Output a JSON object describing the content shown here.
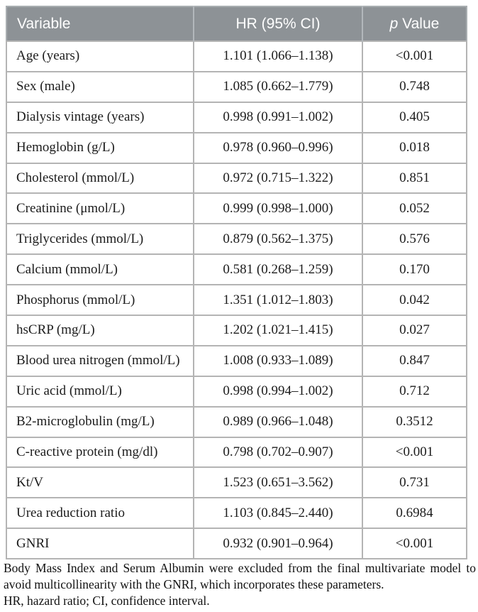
{
  "colors": {
    "header_bg": "#8d9296",
    "header_text": "#ffffff",
    "border": "#b4b4b4",
    "body_text": "#1c1c1c"
  },
  "table": {
    "header": {
      "variable": "Variable",
      "hr_ci": "HR (95% CI)",
      "p_italic": "p",
      "p_rest": " Value"
    },
    "rows": [
      {
        "variable": "Age (years)",
        "hr_ci": "1.101 (1.066–1.138)",
        "p": "<0.001"
      },
      {
        "variable": "Sex (male)",
        "hr_ci": "1.085 (0.662–1.779)",
        "p": "0.748"
      },
      {
        "variable": "Dialysis vintage (years)",
        "hr_ci": "0.998 (0.991–1.002)",
        "p": "0.405"
      },
      {
        "variable": "Hemoglobin (g/L)",
        "hr_ci": "0.978 (0.960–0.996)",
        "p": "0.018"
      },
      {
        "variable": "Cholesterol (mmol/L)",
        "hr_ci": "0.972 (0.715–1.322)",
        "p": "0.851"
      },
      {
        "variable": "Creatinine (μmol/L)",
        "hr_ci": "0.999 (0.998–1.000)",
        "p": "0.052"
      },
      {
        "variable": "Triglycerides (mmol/L)",
        "hr_ci": "0.879 (0.562–1.375)",
        "p": "0.576"
      },
      {
        "variable": "Calcium (mmol/L)",
        "hr_ci": "0.581 (0.268–1.259)",
        "p": "0.170"
      },
      {
        "variable": "Phosphorus (mmol/L)",
        "hr_ci": "1.351 (1.012–1.803)",
        "p": "0.042"
      },
      {
        "variable": "hsCRP (mg/L)",
        "hr_ci": "1.202 (1.021–1.415)",
        "p": "0.027"
      },
      {
        "variable": "Blood urea nitrogen (mmol/L)",
        "hr_ci": "1.008 (0.933–1.089)",
        "p": "0.847"
      },
      {
        "variable": "Uric acid (mmol/L)",
        "hr_ci": "0.998 (0.994–1.002)",
        "p": "0.712"
      },
      {
        "variable": "B2-microglobulin (mg/L)",
        "hr_ci": "0.989 (0.966–1.048)",
        "p": "0.3512"
      },
      {
        "variable": "C-reactive protein (mg/dl)",
        "hr_ci": "0.798 (0.702–0.907)",
        "p": "<0.001"
      },
      {
        "variable": "Kt/V",
        "hr_ci": "1.523 (0.651–3.562)",
        "p": "0.731"
      },
      {
        "variable": "Urea reduction ratio",
        "hr_ci": "1.103 (0.845–2.440)",
        "p": "0.6984"
      },
      {
        "variable": "GNRI",
        "hr_ci": "0.932 (0.901–0.964)",
        "p": "<0.001"
      }
    ]
  },
  "notes": [
    "Body Mass Index and Serum Albumin were excluded from the final multivariate model to avoid multicollinearity with the GNRI, which incorporates these parameters.",
    "HR, hazard ratio; CI, confidence interval."
  ]
}
